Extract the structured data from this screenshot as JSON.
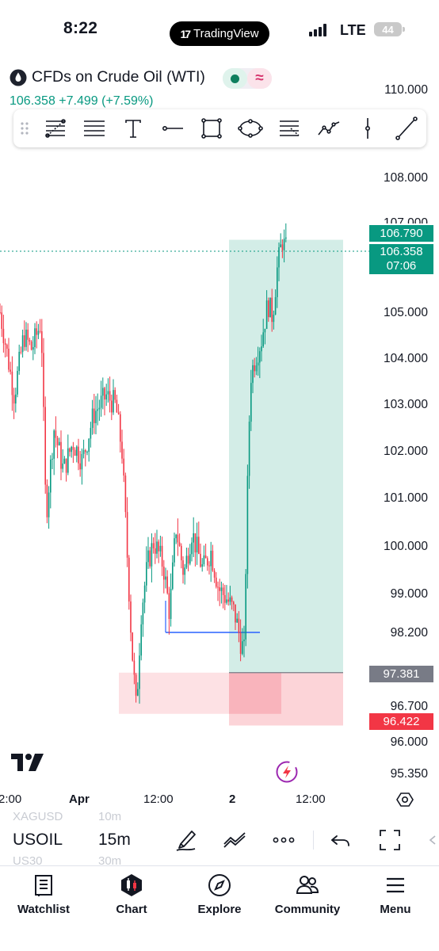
{
  "status_bar": {
    "time": "8:22",
    "app_pill": "TradingView",
    "network": "LTE",
    "battery": "44"
  },
  "symbol": {
    "name": "CFDs on Crude Oil (WTI)",
    "price_change": "106.358 +7.499 (+7.59%)",
    "badge_pink": "≈"
  },
  "price_axis": {
    "labels": [
      "110.000",
      "108.000",
      "107.000",
      "105.000",
      "104.000",
      "103.000",
      "102.000",
      "101.000",
      "100.000",
      "99.000",
      "98.200",
      "96.700",
      "96.000",
      "95.350"
    ],
    "tags": {
      "target": "106.790",
      "last": "106.358",
      "countdown": "07:06",
      "entry": "97.381",
      "stop": "96.422"
    }
  },
  "drawing_toolbar": {
    "tools": [
      "fib-retracement-icon",
      "horizontal-lines-icon",
      "text-tool-icon",
      "horizontal-ray-icon",
      "rectangle-icon",
      "ellipse-icon",
      "position-tool-icon",
      "polyline-icon",
      "vertical-line-icon",
      "trend-line-icon"
    ]
  },
  "time_axis": {
    "labels": [
      "2:00",
      "Apr",
      "12:00",
      "2",
      "12:00"
    ]
  },
  "bottom_toolbar": {
    "symbol": "USOIL",
    "timeframe": "15m",
    "ghost_prev_symbol": "XAGUSD",
    "ghost_next_symbol": "US30",
    "ghost_prev_tf": "10m",
    "ghost_next_tf": "30m"
  },
  "nav": {
    "watchlist": "Watchlist",
    "chart": "Chart",
    "explore": "Explore",
    "community": "Community",
    "menu": "Menu"
  },
  "colors": {
    "up": "#089981",
    "down": "#f23645",
    "target_zone": "#d3ede7",
    "stop_zone": "#fcd4d8",
    "entry_tag": "#787b86",
    "level_line": "#2962ff"
  },
  "chart_data": {
    "type": "candlestick",
    "symbol": "USOIL",
    "timeframe": "15m",
    "last_price": 106.358,
    "ylim": [
      95.35,
      110.0
    ],
    "tick_labels": [
      "110.000",
      "108.000",
      "107.000",
      "105.000",
      "104.000",
      "103.000",
      "102.000",
      "101.000",
      "100.000",
      "99.000",
      "98.200",
      "96.700",
      "96.000",
      "95.350"
    ],
    "x_tick_labels": [
      "2:00",
      "Apr",
      "12:00",
      "2",
      "12:00"
    ],
    "long_position": {
      "entry": 97.381,
      "target": 106.79,
      "stop": 96.422
    },
    "horizontal_level": 98.2,
    "price_path": [
      {
        "x": 0,
        "price": 105.0
      },
      {
        "x": 10,
        "price": 104.0
      },
      {
        "x": 18,
        "price": 103.2
      },
      {
        "x": 30,
        "price": 104.5
      },
      {
        "x": 40,
        "price": 104.2
      },
      {
        "x": 52,
        "price": 104.8
      },
      {
        "x": 58,
        "price": 100.6
      },
      {
        "x": 68,
        "price": 102.5
      },
      {
        "x": 80,
        "price": 101.6
      },
      {
        "x": 92,
        "price": 102.2
      },
      {
        "x": 104,
        "price": 101.8
      },
      {
        "x": 118,
        "price": 102.8
      },
      {
        "x": 134,
        "price": 103.2
      },
      {
        "x": 146,
        "price": 103.0
      },
      {
        "x": 154,
        "price": 102.0
      },
      {
        "x": 160,
        "price": 100.0
      },
      {
        "x": 166,
        "price": 98.0
      },
      {
        "x": 172,
        "price": 96.6
      },
      {
        "x": 178,
        "price": 98.6
      },
      {
        "x": 186,
        "price": 99.6
      },
      {
        "x": 194,
        "price": 100.1
      },
      {
        "x": 206,
        "price": 99.6
      },
      {
        "x": 214,
        "price": 98.6
      },
      {
        "x": 222,
        "price": 100.4
      },
      {
        "x": 232,
        "price": 99.4
      },
      {
        "x": 242,
        "price": 100.3
      },
      {
        "x": 256,
        "price": 99.5
      },
      {
        "x": 266,
        "price": 99.9
      },
      {
        "x": 276,
        "price": 99.1
      },
      {
        "x": 286,
        "price": 98.9
      },
      {
        "x": 296,
        "price": 98.6
      },
      {
        "x": 304,
        "price": 98.0
      },
      {
        "x": 308,
        "price": 97.8
      },
      {
        "x": 312,
        "price": 101.0
      },
      {
        "x": 316,
        "price": 103.6
      },
      {
        "x": 322,
        "price": 104.0
      },
      {
        "x": 330,
        "price": 104.4
      },
      {
        "x": 338,
        "price": 105.2
      },
      {
        "x": 344,
        "price": 104.9
      },
      {
        "x": 350,
        "price": 106.0
      },
      {
        "x": 356,
        "price": 106.6
      },
      {
        "x": 362,
        "price": 106.36
      }
    ]
  }
}
